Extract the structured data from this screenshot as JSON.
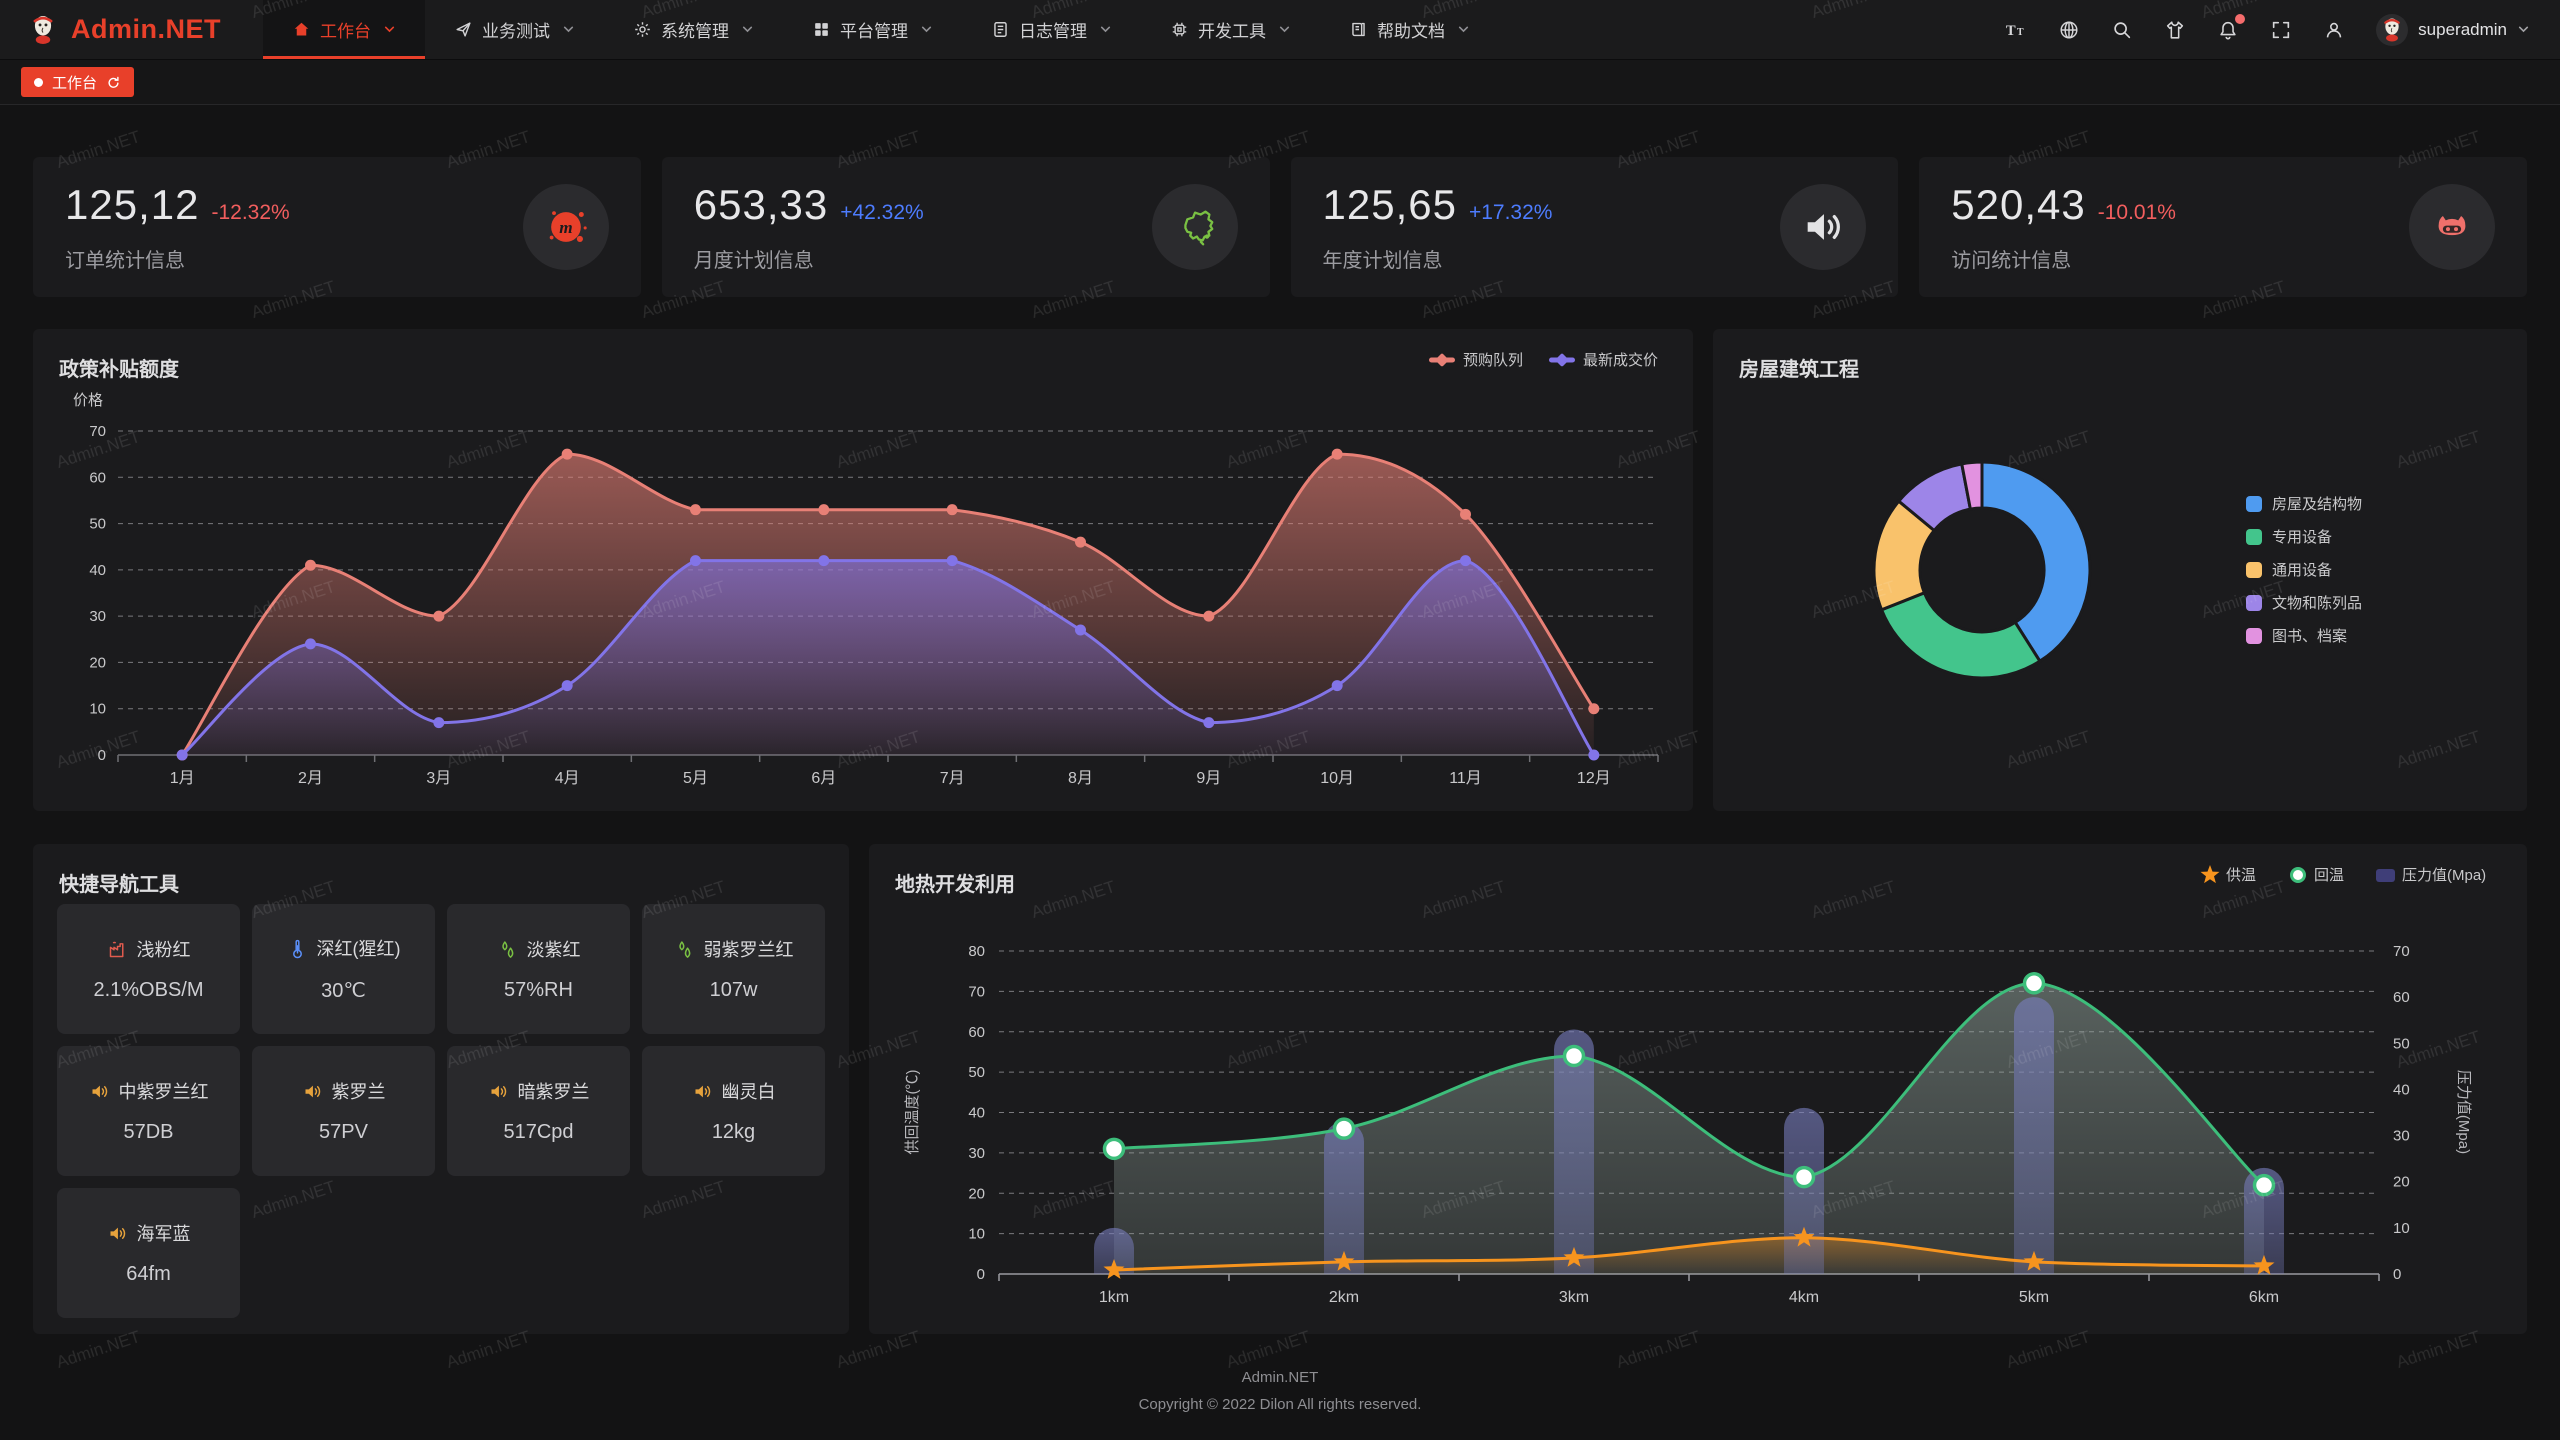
{
  "colors": {
    "accent": "#e8402a",
    "positive": "#4d7cfe",
    "negative": "#f25e5e"
  },
  "watermark": {
    "text": "Admin.NET"
  },
  "navbar": {
    "logo_text": "Admin.NET",
    "menu": [
      {
        "key": "workbench",
        "label": "工作台",
        "icon": "home-icon",
        "active": true
      },
      {
        "key": "business-test",
        "label": "业务测试",
        "icon": "send-icon",
        "active": false
      },
      {
        "key": "system-manage",
        "label": "系统管理",
        "icon": "gear-icon",
        "active": false
      },
      {
        "key": "platform-manage",
        "label": "平台管理",
        "icon": "grid-icon",
        "active": false
      },
      {
        "key": "log-manage",
        "label": "日志管理",
        "icon": "document-icon",
        "active": false
      },
      {
        "key": "dev-tools",
        "label": "开发工具",
        "icon": "cpu-icon",
        "active": false
      },
      {
        "key": "help-docs",
        "label": "帮助文档",
        "icon": "book-icon",
        "active": false
      }
    ],
    "tools": [
      {
        "key": "font-size",
        "icon": "font-size-icon",
        "badge": false
      },
      {
        "key": "language",
        "icon": "language-icon",
        "badge": false
      },
      {
        "key": "search",
        "icon": "search-icon",
        "badge": false
      },
      {
        "key": "theme",
        "icon": "theme-icon",
        "badge": false
      },
      {
        "key": "notifications",
        "icon": "bell-icon",
        "badge": true
      },
      {
        "key": "fullscreen",
        "icon": "fullscreen-icon",
        "badge": false
      },
      {
        "key": "profile",
        "icon": "user-icon",
        "badge": false
      }
    ],
    "username": "superadmin"
  },
  "tabbar": {
    "active_tab": "工作台"
  },
  "stat_cards": [
    {
      "value": "125,12",
      "delta": "-12.32%",
      "delta_dir": "down",
      "label": "订单统计信息",
      "icon": "meetup-icon",
      "icon_color": "#e8402a"
    },
    {
      "value": "653,33",
      "delta": "+42.32%",
      "delta_dir": "up",
      "label": "月度计划信息",
      "icon": "china-map-icon",
      "icon_color": "#7ac143"
    },
    {
      "value": "125,65",
      "delta": "+17.32%",
      "delta_dir": "up",
      "label": "年度计划信息",
      "icon": "speaker-icon",
      "icon_color": "#e3e3e5"
    },
    {
      "value": "520,43",
      "delta": "-10.01%",
      "delta_dir": "down",
      "label": "访问统计信息",
      "icon": "cat-icon",
      "icon_color": "#f0706b"
    }
  ],
  "chart_data": [
    {
      "type": "line",
      "title": "政策补贴额度",
      "ylabel": "价格",
      "ylim": [
        0,
        70
      ],
      "ytick_interval": 10,
      "grid": "dashed-horizontal",
      "legend_position": "top-right",
      "categories": [
        "1月",
        "2月",
        "3月",
        "4月",
        "5月",
        "6月",
        "7月",
        "8月",
        "9月",
        "10月",
        "11月",
        "12月"
      ],
      "series": [
        {
          "name": "预购队列",
          "color": "#e88076",
          "smooth": true,
          "area": true,
          "values": [
            0,
            41,
            30,
            65,
            53,
            53,
            53,
            46,
            30,
            65,
            52,
            10
          ]
        },
        {
          "name": "最新成交价",
          "color": "#8274e8",
          "smooth": true,
          "area": true,
          "values": [
            0,
            24,
            7,
            15,
            42,
            42,
            42,
            27,
            7,
            15,
            42,
            0
          ]
        }
      ]
    },
    {
      "type": "pie",
      "title": "房屋建筑工程",
      "donut": true,
      "legend_position": "right",
      "slices": [
        {
          "label": "房屋及结构物",
          "value": 41,
          "color": "#4f9bf0"
        },
        {
          "label": "专用设备",
          "value": 28,
          "color": "#43c58c"
        },
        {
          "label": "通用设备",
          "value": 17,
          "color": "#f9c26b"
        },
        {
          "label": "文物和陈列品",
          "value": 11,
          "color": "#9d85e8"
        },
        {
          "label": "图书、档案",
          "value": 3,
          "color": "#e292e0"
        }
      ]
    },
    {
      "type": "line",
      "title": "地热开发利用",
      "legend_position": "top-right",
      "categories": [
        "1km",
        "2km",
        "3km",
        "4km",
        "5km",
        "6km"
      ],
      "ylabel_left": "供回温度(℃)",
      "ylim_left": [
        0,
        80
      ],
      "ylabel_right": "压力值(Mpa)",
      "ylim_right": [
        0,
        70
      ],
      "series": [
        {
          "name": "供温",
          "type": "line",
          "axis": "left",
          "marker": "star",
          "color": "#f7941e",
          "values": [
            1,
            3,
            4,
            9,
            3,
            2
          ]
        },
        {
          "name": "回温",
          "type": "line",
          "axis": "left",
          "marker": "circle",
          "color": "#3dbe7b",
          "area": true,
          "values": [
            31,
            36,
            54,
            24,
            72,
            22
          ]
        },
        {
          "name": "压力值(Mpa)",
          "type": "bar",
          "axis": "right",
          "marker": "rect",
          "color": "#787dbe",
          "values": [
            10,
            33,
            53,
            36,
            60,
            23
          ]
        }
      ]
    }
  ],
  "quick_nav": {
    "title": "快捷导航工具",
    "items": [
      {
        "label": "浅粉红",
        "value": "2.1%OBS/M",
        "icon": "factory-icon",
        "icon_color": "#e05b4e"
      },
      {
        "label": "深红(猩红)",
        "value": "30℃",
        "icon": "thermometer-icon",
        "icon_color": "#5b8ff9"
      },
      {
        "label": "淡紫红",
        "value": "57%RH",
        "icon": "humidity-icon",
        "icon_color": "#7ac143"
      },
      {
        "label": "弱紫罗兰红",
        "value": "107w",
        "icon": "humidity-icon",
        "icon_color": "#7ac143"
      },
      {
        "label": "中紫罗兰红",
        "value": "57DB",
        "icon": "speaker-icon",
        "icon_color": "#e6a23c"
      },
      {
        "label": "紫罗兰",
        "value": "57PV",
        "icon": "speaker-icon",
        "icon_color": "#e6a23c"
      },
      {
        "label": "暗紫罗兰",
        "value": "517Cpd",
        "icon": "speaker-icon",
        "icon_color": "#e6a23c"
      },
      {
        "label": "幽灵白",
        "value": "12kg",
        "icon": "speaker-icon",
        "icon_color": "#e6a23c"
      },
      {
        "label": "海军蓝",
        "value": "64fm",
        "icon": "speaker-icon",
        "icon_color": "#e6a23c"
      }
    ]
  },
  "footer": {
    "line1": "Admin.NET",
    "line2": "Copyright © 2022 Dilon All rights reserved."
  }
}
